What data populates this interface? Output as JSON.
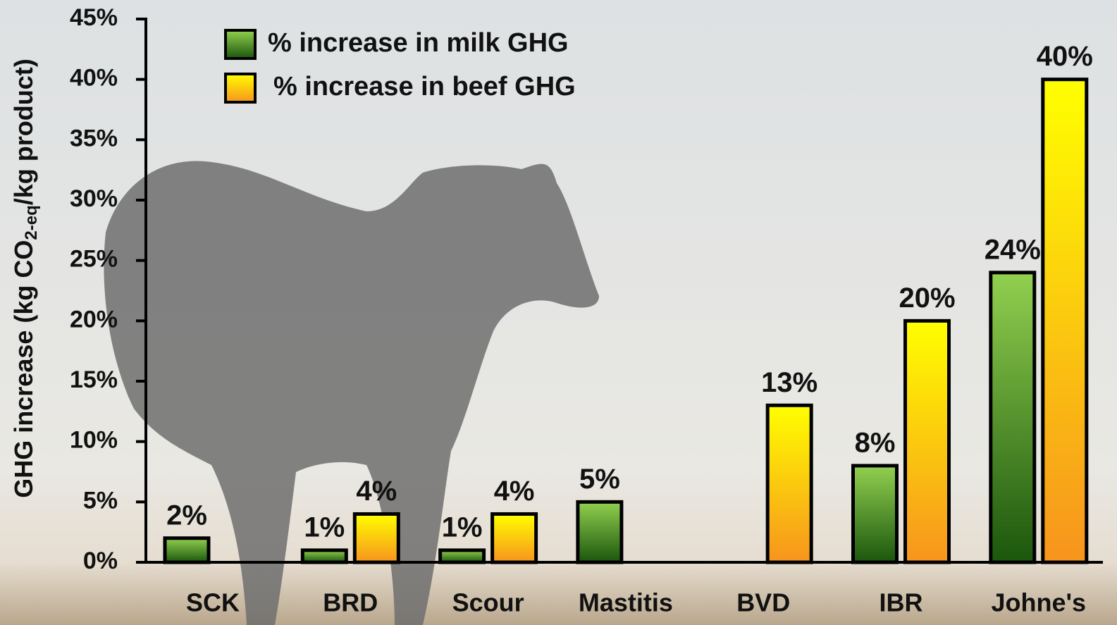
{
  "chart_data": {
    "type": "bar",
    "ylabel": [
      "GHG increase (kg CO",
      "2-eq",
      "/kg product)"
    ],
    "categories": [
      "SCK",
      "BRD",
      "Scour",
      "Mastitis",
      "BVD",
      "IBR",
      "Johne's"
    ],
    "series": [
      {
        "name": "% increase in milk GHG",
        "color": [
          "#92d050",
          "#1b560c"
        ],
        "values": [
          2,
          1,
          1,
          5,
          null,
          8,
          24
        ],
        "value_labels": [
          "2%",
          "1%",
          "1%",
          "5%",
          null,
          "8%",
          "24%"
        ]
      },
      {
        "name": "% increase in beef GHG",
        "color": [
          "#ffff00",
          "#f7941d"
        ],
        "values": [
          null,
          4,
          4,
          null,
          13,
          20,
          40
        ],
        "value_labels": [
          null,
          "4%",
          "4%",
          null,
          "13%",
          "20%",
          "40%"
        ]
      }
    ],
    "ylim": [
      0,
      45
    ],
    "yticks": [
      {
        "value": 0,
        "label": "0%"
      },
      {
        "value": 5,
        "label": "5%"
      },
      {
        "value": 10,
        "label": "10%"
      },
      {
        "value": 15,
        "label": "15%"
      },
      {
        "value": 20,
        "label": "20%"
      },
      {
        "value": 25,
        "label": "25%"
      },
      {
        "value": 30,
        "label": "30%"
      },
      {
        "value": 35,
        "label": "35%"
      },
      {
        "value": 40,
        "label": "40%"
      },
      {
        "value": 45,
        "label": "45%"
      }
    ],
    "legend": "upper left"
  }
}
